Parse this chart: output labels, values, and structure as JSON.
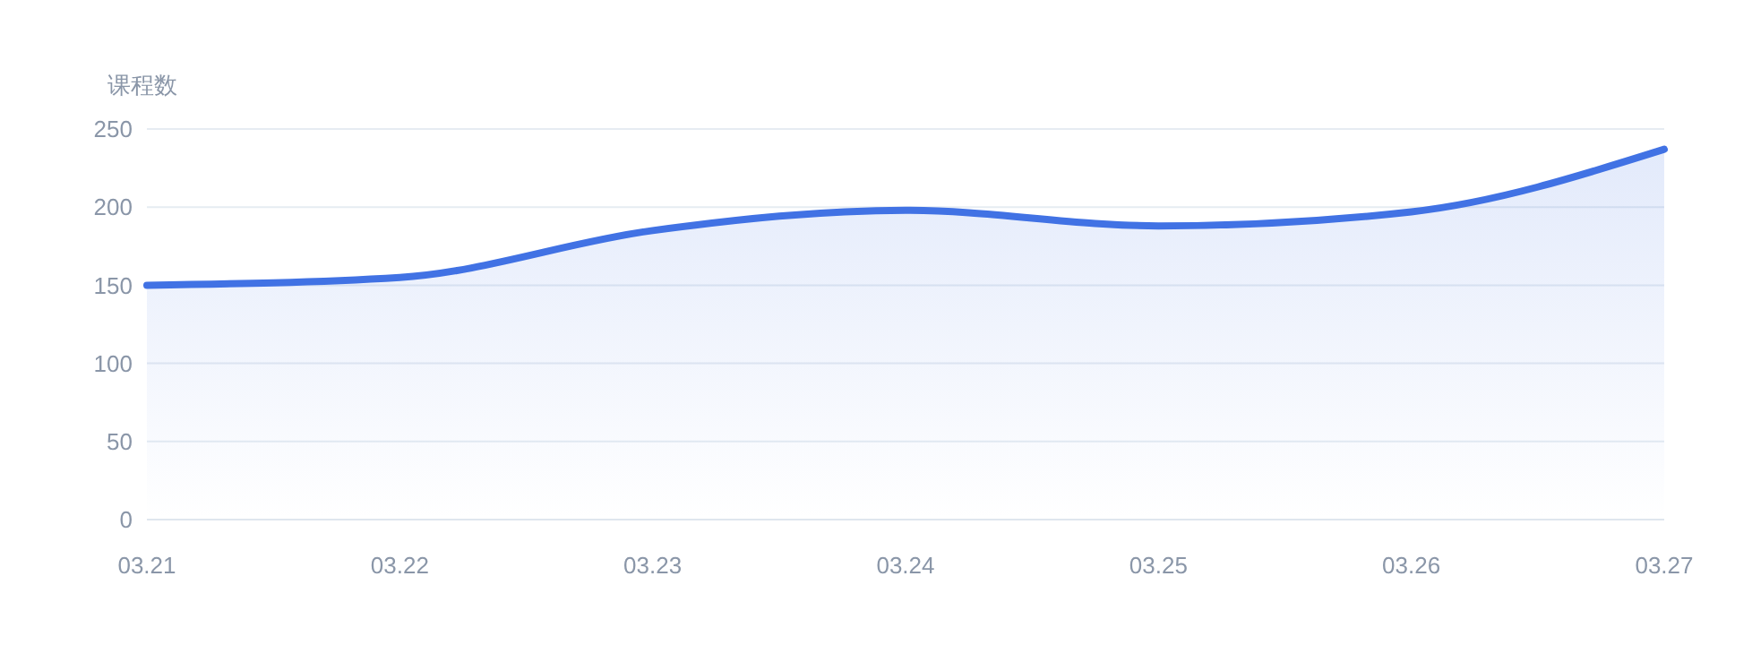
{
  "chart_data": {
    "type": "area",
    "ylabel": "课程数",
    "categories": [
      "03.21",
      "03.22",
      "03.23",
      "03.24",
      "03.25",
      "03.26",
      "03.27"
    ],
    "series": [
      {
        "color": "#4172e4",
        "values": [
          150,
          155,
          185,
          198,
          188,
          197,
          237
        ]
      }
    ],
    "ylim": [
      0,
      250
    ],
    "yticks": [
      0,
      50,
      100,
      150,
      200,
      250
    ],
    "grid": "y"
  }
}
